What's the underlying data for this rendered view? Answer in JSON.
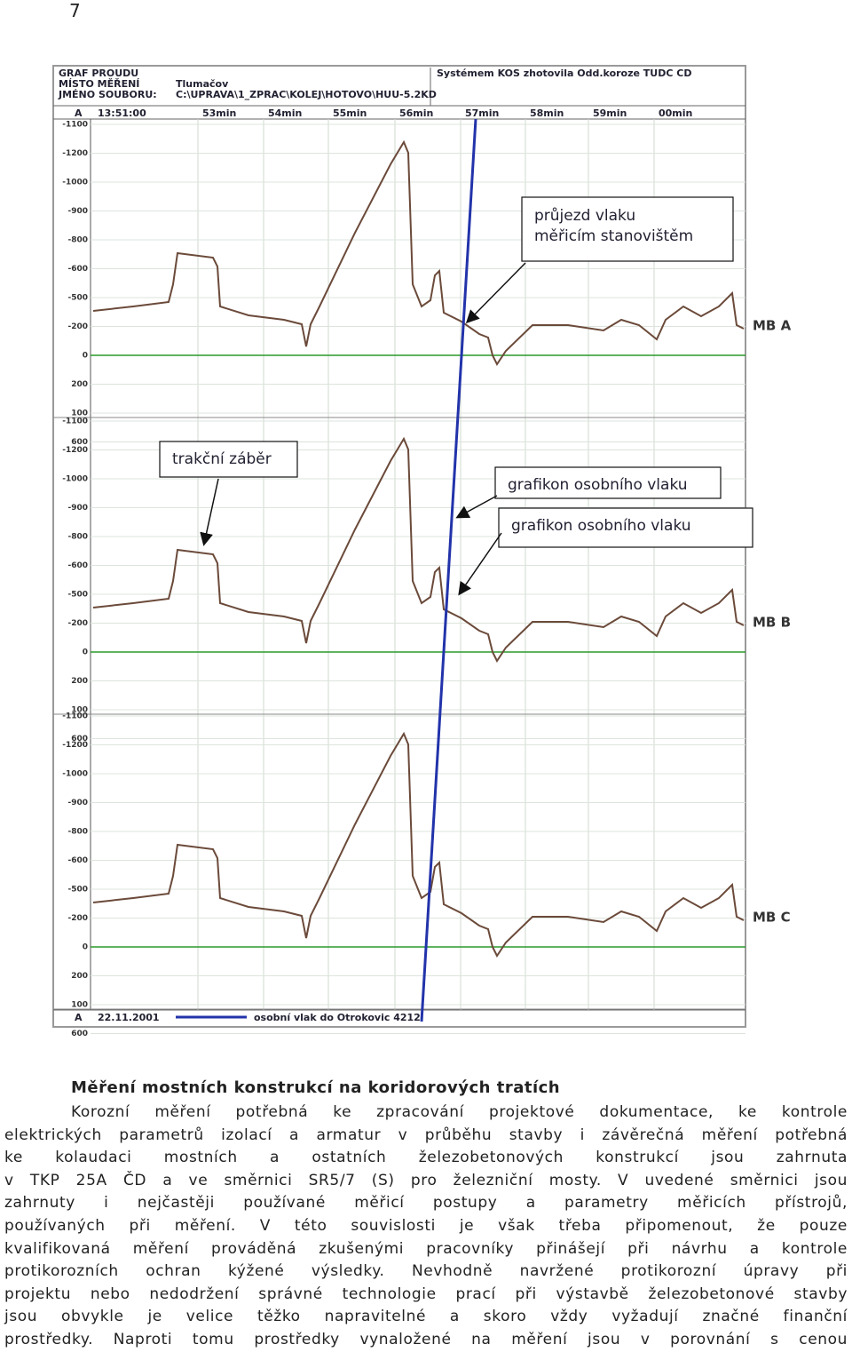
{
  "page_number": "7",
  "figure": {
    "header_left": [
      "GRAF PROUDU",
      "MÍSTO MĚŘENÍ",
      "JMÉNO SOUBORU:"
    ],
    "header_mid": [
      "Tlumačov",
      "C:\\UPRAVA\\1_ZPRAC\\KOLEJ\\HOTOVO\\HUU-5.2KD"
    ],
    "header_right": "Systémem KOS zhotovila Odd.koroze TUDC CD",
    "time_row": [
      "A",
      "13:51:00",
      "53min",
      "54min",
      "55min",
      "56min",
      "57min",
      "58min",
      "59min",
      "00min"
    ],
    "panels": [
      {
        "label": "MB A",
        "ticks": [
          "-1100",
          "-1200",
          "-1000",
          "-900",
          "-800",
          "-600",
          "-500",
          "-200",
          "0",
          "200",
          "100",
          "600"
        ]
      },
      {
        "label": "MB B",
        "ticks": [
          "-1100",
          "-1200",
          "-1000",
          "-900",
          "-800",
          "-600",
          "-500",
          "-200",
          "0",
          "200",
          "100",
          "600"
        ]
      },
      {
        "label": "MB C",
        "ticks": [
          "-1100",
          "-1200",
          "-1000",
          "-900",
          "-800",
          "-600",
          "-500",
          "-200",
          "0",
          "200",
          "100",
          "600"
        ]
      }
    ],
    "footer": [
      "A",
      "22.11.2001",
      "osobní vlak do Otrokovic 4212"
    ],
    "callouts": [
      [
        "průjezd vlaku",
        "měřicím stanovištěm"
      ],
      [
        "trakční záběr"
      ],
      [
        "grafikon osobního vlaku"
      ],
      [
        "grafikon osobního vlaku"
      ]
    ]
  },
  "heading": "Měření mostních konstrukcí na koridorových tratích",
  "paragraph": [
    "Korozní měření potřebná ke zpracování projektové dokumentace, ke kontrole",
    "elektrických parametrů izolací a armatur v průběhu stavby i závěrečná měření potřebná",
    "ke kolaudaci mostních a ostatních železobetonových konstrukcí jsou zahrnuta",
    "v TKP 25A ČD a ve směrnici SR5/7 (S) pro železniční mosty. V uvedené směrnici jsou",
    "zahrnuty i nejčastěji používané měřicí postupy a parametry měřicích přístrojů,",
    "používaných při měření. V této souvislosti je však třeba připomenout, že pouze",
    "kvalifikovaná měření prováděná zkušenými pracovníky přinášejí při návrhu a kontrole",
    "protikorozních ochran kýžené výsledky. Nevhodně navržené protikorozní úpravy při",
    "projektu nebo nedodržení správné technologie prací při výstavbě železobetonové stavby",
    "jsou obvykle je velice těžko napravitelné a skoro vždy vyžadují značné finanční",
    "prostředky. Naproti tomu prostředky vynaložené na měření jsou v porovnání s cenou"
  ]
}
